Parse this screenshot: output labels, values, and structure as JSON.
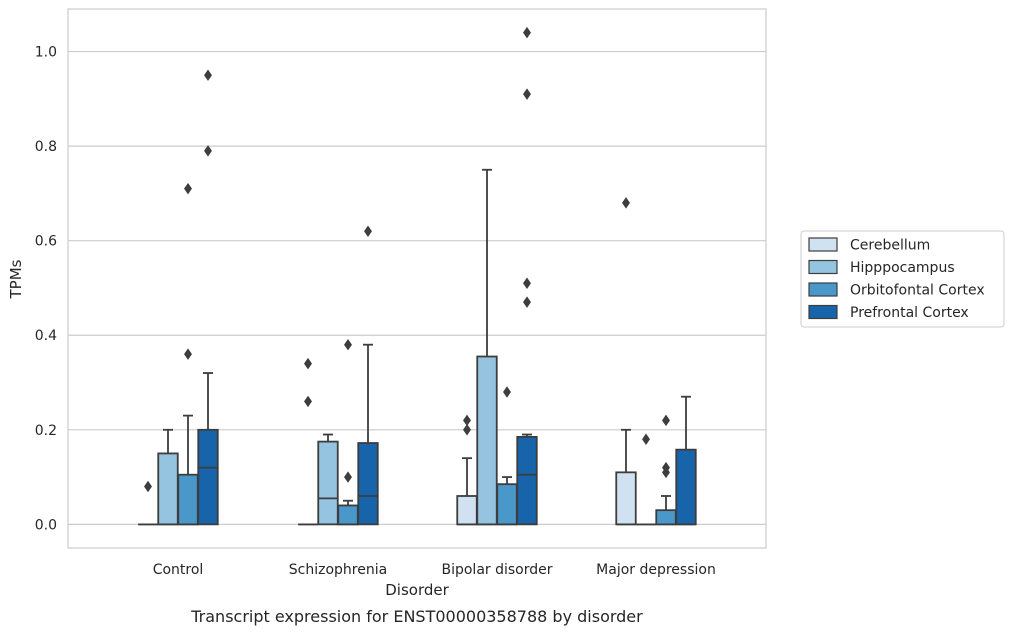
{
  "chart_data": {
    "type": "box",
    "title": "",
    "caption": "Transcript expression for ENST00000358788 by disorder",
    "xlabel": "Disorder",
    "ylabel": "TPMs",
    "ylim": [
      -0.05,
      1.09
    ],
    "yticks": [
      0.0,
      0.2,
      0.4,
      0.6,
      0.8,
      1.0
    ],
    "ytick_labels": [
      "0.0",
      "0.2",
      "0.4",
      "0.6",
      "0.8",
      "1.0"
    ],
    "categories": [
      "Control",
      "Schizophrenia",
      "Bipolar disorder",
      "Major depression"
    ],
    "grid": "horizontal",
    "legend_position": "right",
    "series": [
      {
        "name": "Cerebellum",
        "color": "#d0e1f2",
        "boxes": [
          {
            "q1": 0.0,
            "median": 0.0,
            "q3": 0.0,
            "whisker_low": 0.0,
            "whisker_high": 0.0,
            "outliers": [
              0.08
            ]
          },
          {
            "q1": 0.0,
            "median": 0.0,
            "q3": 0.0,
            "whisker_low": 0.0,
            "whisker_high": 0.0,
            "outliers": [
              0.34,
              0.26
            ]
          },
          {
            "q1": 0.0,
            "median": 0.0,
            "q3": 0.06,
            "whisker_low": 0.0,
            "whisker_high": 0.14,
            "outliers": [
              0.22,
              0.2
            ]
          },
          {
            "q1": 0.0,
            "median": 0.0,
            "q3": 0.11,
            "whisker_low": 0.0,
            "whisker_high": 0.2,
            "outliers": [
              0.68
            ]
          }
        ]
      },
      {
        "name": "Hipppocampus",
        "color": "#94c4df",
        "boxes": [
          {
            "q1": 0.0,
            "median": 0.0,
            "q3": 0.15,
            "whisker_low": 0.0,
            "whisker_high": 0.2,
            "outliers": []
          },
          {
            "q1": 0.0,
            "median": 0.055,
            "q3": 0.175,
            "whisker_low": 0.0,
            "whisker_high": 0.19,
            "outliers": []
          },
          {
            "q1": 0.0,
            "median": 0.0,
            "q3": 0.355,
            "whisker_low": 0.0,
            "whisker_high": 0.75,
            "outliers": []
          },
          {
            "q1": 0.0,
            "median": 0.0,
            "q3": 0.0,
            "whisker_low": 0.0,
            "whisker_high": 0.0,
            "outliers": [
              0.18
            ]
          }
        ]
      },
      {
        "name": "Orbitofontal Cortex",
        "color": "#4a98c9",
        "boxes": [
          {
            "q1": 0.0,
            "median": 0.0,
            "q3": 0.105,
            "whisker_low": 0.0,
            "whisker_high": 0.23,
            "outliers": [
              0.71,
              0.36
            ]
          },
          {
            "q1": 0.0,
            "median": 0.0,
            "q3": 0.04,
            "whisker_low": 0.0,
            "whisker_high": 0.05,
            "outliers": [
              0.38,
              0.1
            ]
          },
          {
            "q1": 0.0,
            "median": 0.0,
            "q3": 0.085,
            "whisker_low": 0.0,
            "whisker_high": 0.1,
            "outliers": [
              0.28
            ]
          },
          {
            "q1": 0.0,
            "median": 0.0,
            "q3": 0.03,
            "whisker_low": 0.0,
            "whisker_high": 0.06,
            "outliers": [
              0.22,
              0.12,
              0.11
            ]
          }
        ]
      },
      {
        "name": "Prefrontal Cortex",
        "color": "#1764ab",
        "boxes": [
          {
            "q1": 0.0,
            "median": 0.12,
            "q3": 0.2,
            "whisker_low": 0.0,
            "whisker_high": 0.32,
            "outliers": [
              0.95,
              0.79
            ]
          },
          {
            "q1": 0.0,
            "median": 0.06,
            "q3": 0.172,
            "whisker_low": 0.0,
            "whisker_high": 0.38,
            "outliers": [
              0.62
            ]
          },
          {
            "q1": 0.0,
            "median": 0.105,
            "q3": 0.185,
            "whisker_low": 0.0,
            "whisker_high": 0.19,
            "outliers": [
              1.04,
              0.91,
              0.51,
              0.47
            ]
          },
          {
            "q1": 0.0,
            "median": 0.0,
            "q3": 0.158,
            "whisker_low": 0.0,
            "whisker_high": 0.27,
            "outliers": []
          }
        ]
      }
    ]
  }
}
